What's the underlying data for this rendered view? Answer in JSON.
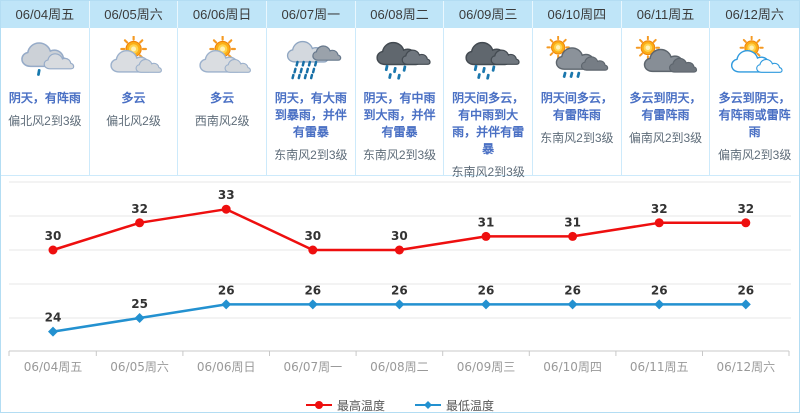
{
  "widget": {
    "border_color": "#b3ddf3",
    "header_bg": "#bfe5f8",
    "desc_color": "#4a70c4",
    "wind_color": "#5f6d7a"
  },
  "days": [
    {
      "date": "06/04周五",
      "icon": "overcast-shower",
      "desc": "阴天，有阵雨",
      "wind": "偏北风2到3级"
    },
    {
      "date": "06/05周六",
      "icon": "partly-cloudy",
      "desc": "多云",
      "wind": "偏北风2级"
    },
    {
      "date": "06/06周日",
      "icon": "partly-cloudy",
      "desc": "多云",
      "wind": "西南风2级"
    },
    {
      "date": "06/07周一",
      "icon": "heavy-rain-storm",
      "desc": "阴天，有大雨到暴雨，并伴有雷暴",
      "wind": "东南风2到3级"
    },
    {
      "date": "06/08周二",
      "icon": "moderate-heavy-rain",
      "desc": "阴天，有中雨到大雨，并伴有雷暴",
      "wind": "东南风2到3级"
    },
    {
      "date": "06/09周三",
      "icon": "moderate-heavy-rain",
      "desc": "阴天间多云，有中雨到大雨，并伴有雷暴",
      "wind": "东南风2到3级"
    },
    {
      "date": "06/10周四",
      "icon": "sun-cloud-thunder-shower",
      "desc": "阴天间多云，有雷阵雨",
      "wind": "东南风2到3级"
    },
    {
      "date": "06/11周五",
      "icon": "sun-dark-cloud",
      "desc": "多云到阴天，有雷阵雨",
      "wind": "偏南风2到3级"
    },
    {
      "date": "06/12周六",
      "icon": "sun-white-cloud",
      "desc": "多云到阴天，有阵雨或雷阵雨",
      "wind": "偏南风2到3级"
    }
  ],
  "chart_data": {
    "type": "line",
    "title": "",
    "categories": [
      "06/04周五",
      "06/05周六",
      "06/06周日",
      "06/07周一",
      "06/08周二",
      "06/09周三",
      "06/10周四",
      "06/11周五",
      "06/12周六"
    ],
    "series": [
      {
        "name": "最高温度",
        "color": "#ee0f0f",
        "marker": "circle",
        "values": [
          30,
          32,
          33,
          30,
          30,
          31,
          31,
          32,
          32
        ]
      },
      {
        "name": "最低温度",
        "color": "#2391d0",
        "marker": "diamond",
        "values": [
          24,
          25,
          26,
          26,
          26,
          26,
          26,
          26,
          26
        ]
      }
    ],
    "point_labels_shown": true,
    "grid": true,
    "y_axis_labels_shown": false,
    "legend_position": "bottom",
    "axis_color": "#c8c8c8",
    "grid_color": "#e7e7e7",
    "tick_label_color": "#999999",
    "point_label_color": "#333333"
  }
}
